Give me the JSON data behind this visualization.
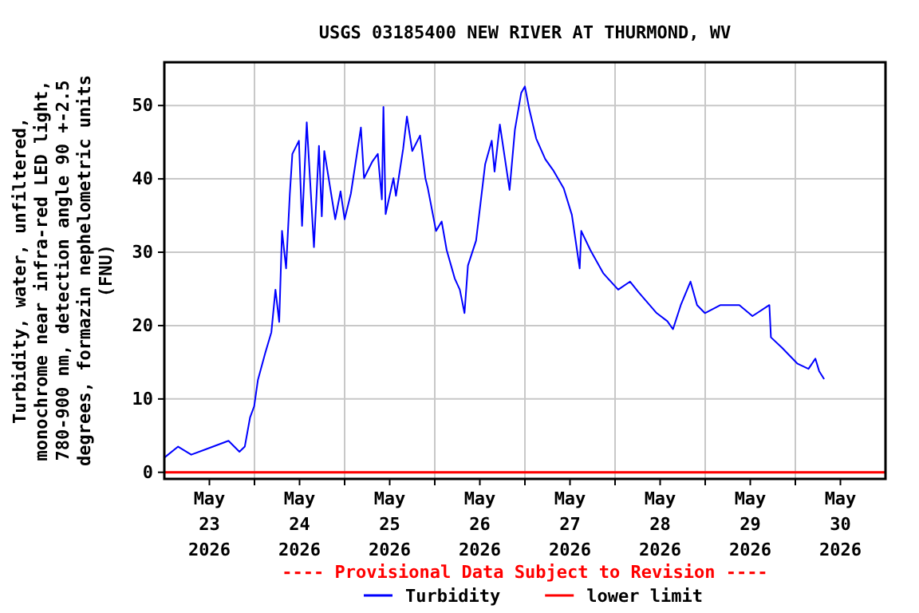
{
  "chart_data": {
    "type": "line",
    "title": "USGS 03185400 NEW RIVER AT THURMOND, WV",
    "ylabel": "Turbidity, water, unfiltered,\nmonochrome near infra-red LED light,\n780-900 nm, detection angle 90 +-2.5\ndegrees, formazin nephelometric units\n(FNU)",
    "annotations": [
      "---- Provisional Data Subject to Revision ----"
    ],
    "xlim": [
      "2026-05-23T00:00",
      "2026-05-31T00:00"
    ],
    "xticks": [
      {
        "value": "2026-05-23T12:00",
        "label": "May\n23\n2026"
      },
      {
        "value": "2026-05-24T00:00",
        "label": null
      },
      {
        "value": "2026-05-24T12:00",
        "label": "May\n24\n2026"
      },
      {
        "value": "2026-05-25T00:00",
        "label": null
      },
      {
        "value": "2026-05-25T12:00",
        "label": "May\n25\n2026"
      },
      {
        "value": "2026-05-26T00:00",
        "label": null
      },
      {
        "value": "2026-05-26T12:00",
        "label": "May\n26\n2026"
      },
      {
        "value": "2026-05-27T00:00",
        "label": null
      },
      {
        "value": "2026-05-27T12:00",
        "label": "May\n27\n2026"
      },
      {
        "value": "2026-05-28T00:00",
        "label": null
      },
      {
        "value": "2026-05-28T12:00",
        "label": "May\n28\n2026"
      },
      {
        "value": "2026-05-29T00:00",
        "label": null
      },
      {
        "value": "2026-05-29T12:00",
        "label": "May\n29\n2026"
      },
      {
        "value": "2026-05-30T00:00",
        "label": null
      },
      {
        "value": "2026-05-30T12:00",
        "label": "May\n30\n2026"
      }
    ],
    "ylim": [
      -0.9,
      55.9
    ],
    "yticks": [
      0,
      10,
      20,
      30,
      40,
      50
    ],
    "grid": true,
    "legend": "bottom",
    "ref_lines": [
      {
        "axis": "y",
        "value": 0,
        "label": "lower limit",
        "color": "#ff0000"
      }
    ],
    "series": [
      {
        "name": "Turbidity",
        "color": "#0000ff",
        "x": [
          "2026-05-23T00:00",
          "2026-05-23T03:40",
          "2026-05-23T07:10",
          "2026-05-23T17:05",
          "2026-05-23T20:00",
          "2026-05-23T21:25",
          "2026-05-23T22:50",
          "2026-05-23T23:55",
          "2026-05-24T00:55",
          "2026-05-24T02:50",
          "2026-05-24T04:30",
          "2026-05-24T05:35",
          "2026-05-24T06:35",
          "2026-05-24T07:20",
          "2026-05-24T08:25",
          "2026-05-24T09:25",
          "2026-05-24T10:05",
          "2026-05-24T11:50",
          "2026-05-24T12:40",
          "2026-05-24T13:55",
          "2026-05-24T15:50",
          "2026-05-24T17:10",
          "2026-05-24T17:55",
          "2026-05-24T18:35",
          "2026-05-24T21:30",
          "2026-05-24T22:55",
          "2026-05-25T00:00",
          "2026-05-25T01:40",
          "2026-05-25T04:20",
          "2026-05-25T05:10",
          "2026-05-25T07:25",
          "2026-05-25T08:50",
          "2026-05-25T09:55",
          "2026-05-25T10:20",
          "2026-05-25T10:55",
          "2026-05-25T13:00",
          "2026-05-25T13:40",
          "2026-05-25T15:35",
          "2026-05-25T16:35",
          "2026-05-25T18:00",
          "2026-05-25T20:05",
          "2026-05-25T21:30",
          "2026-05-25T22:10",
          "2026-05-26T00:20",
          "2026-05-26T01:50",
          "2026-05-26T03:10",
          "2026-05-26T05:20",
          "2026-05-26T06:40",
          "2026-05-26T07:55",
          "2026-05-26T08:50",
          "2026-05-26T11:00",
          "2026-05-26T13:25",
          "2026-05-26T15:10",
          "2026-05-26T15:55",
          "2026-05-26T17:20",
          "2026-05-26T19:55",
          "2026-05-26T21:20",
          "2026-05-26T23:00",
          "2026-05-27T00:00",
          "2026-05-27T01:10",
          "2026-05-27T03:00",
          "2026-05-27T05:25",
          "2026-05-27T07:30",
          "2026-05-27T10:20",
          "2026-05-27T12:30",
          "2026-05-27T14:35",
          "2026-05-27T15:00",
          "2026-05-27T17:25",
          "2026-05-27T20:55",
          "2026-05-28T00:50",
          "2026-05-28T04:00",
          "2026-05-28T06:10",
          "2026-05-28T11:05",
          "2026-05-28T13:55",
          "2026-05-28T15:25",
          "2026-05-28T17:30",
          "2026-05-28T20:05",
          "2026-05-28T21:50",
          "2026-05-28T23:55",
          "2026-05-29T04:05",
          "2026-05-29T09:05",
          "2026-05-29T12:35",
          "2026-05-29T17:05",
          "2026-05-29T17:30",
          "2026-05-29T20:25",
          "2026-05-30T00:35",
          "2026-05-30T03:30",
          "2026-05-30T05:20",
          "2026-05-30T06:20",
          "2026-05-30T07:40"
        ],
        "values": [
          2.0,
          3.5,
          2.4,
          4.3,
          2.8,
          3.5,
          7.5,
          9.0,
          12.6,
          16.2,
          19.1,
          24.9,
          20.5,
          32.9,
          27.8,
          38.0,
          43.4,
          45.2,
          33.6,
          47.7,
          30.7,
          44.5,
          34.9,
          43.8,
          34.5,
          38.3,
          34.5,
          38.0,
          47.0,
          40.1,
          42.4,
          43.4,
          37.2,
          49.8,
          35.2,
          40.1,
          37.7,
          44.1,
          48.5,
          43.8,
          45.9,
          40.1,
          38.7,
          32.9,
          34.2,
          30.3,
          26.4,
          24.9,
          21.7,
          28.2,
          31.6,
          42.0,
          45.2,
          41.0,
          47.4,
          38.5,
          46.7,
          51.7,
          52.6,
          49.5,
          45.5,
          42.7,
          41.2,
          38.7,
          35.1,
          27.8,
          32.9,
          30.3,
          27.1,
          24.9,
          26.0,
          24.6,
          21.7,
          20.6,
          19.5,
          22.8,
          26.0,
          22.8,
          21.7,
          22.8,
          22.8,
          21.3,
          22.8,
          18.4,
          17.0,
          14.8,
          14.1,
          15.5,
          13.8,
          12.7
        ]
      }
    ]
  }
}
